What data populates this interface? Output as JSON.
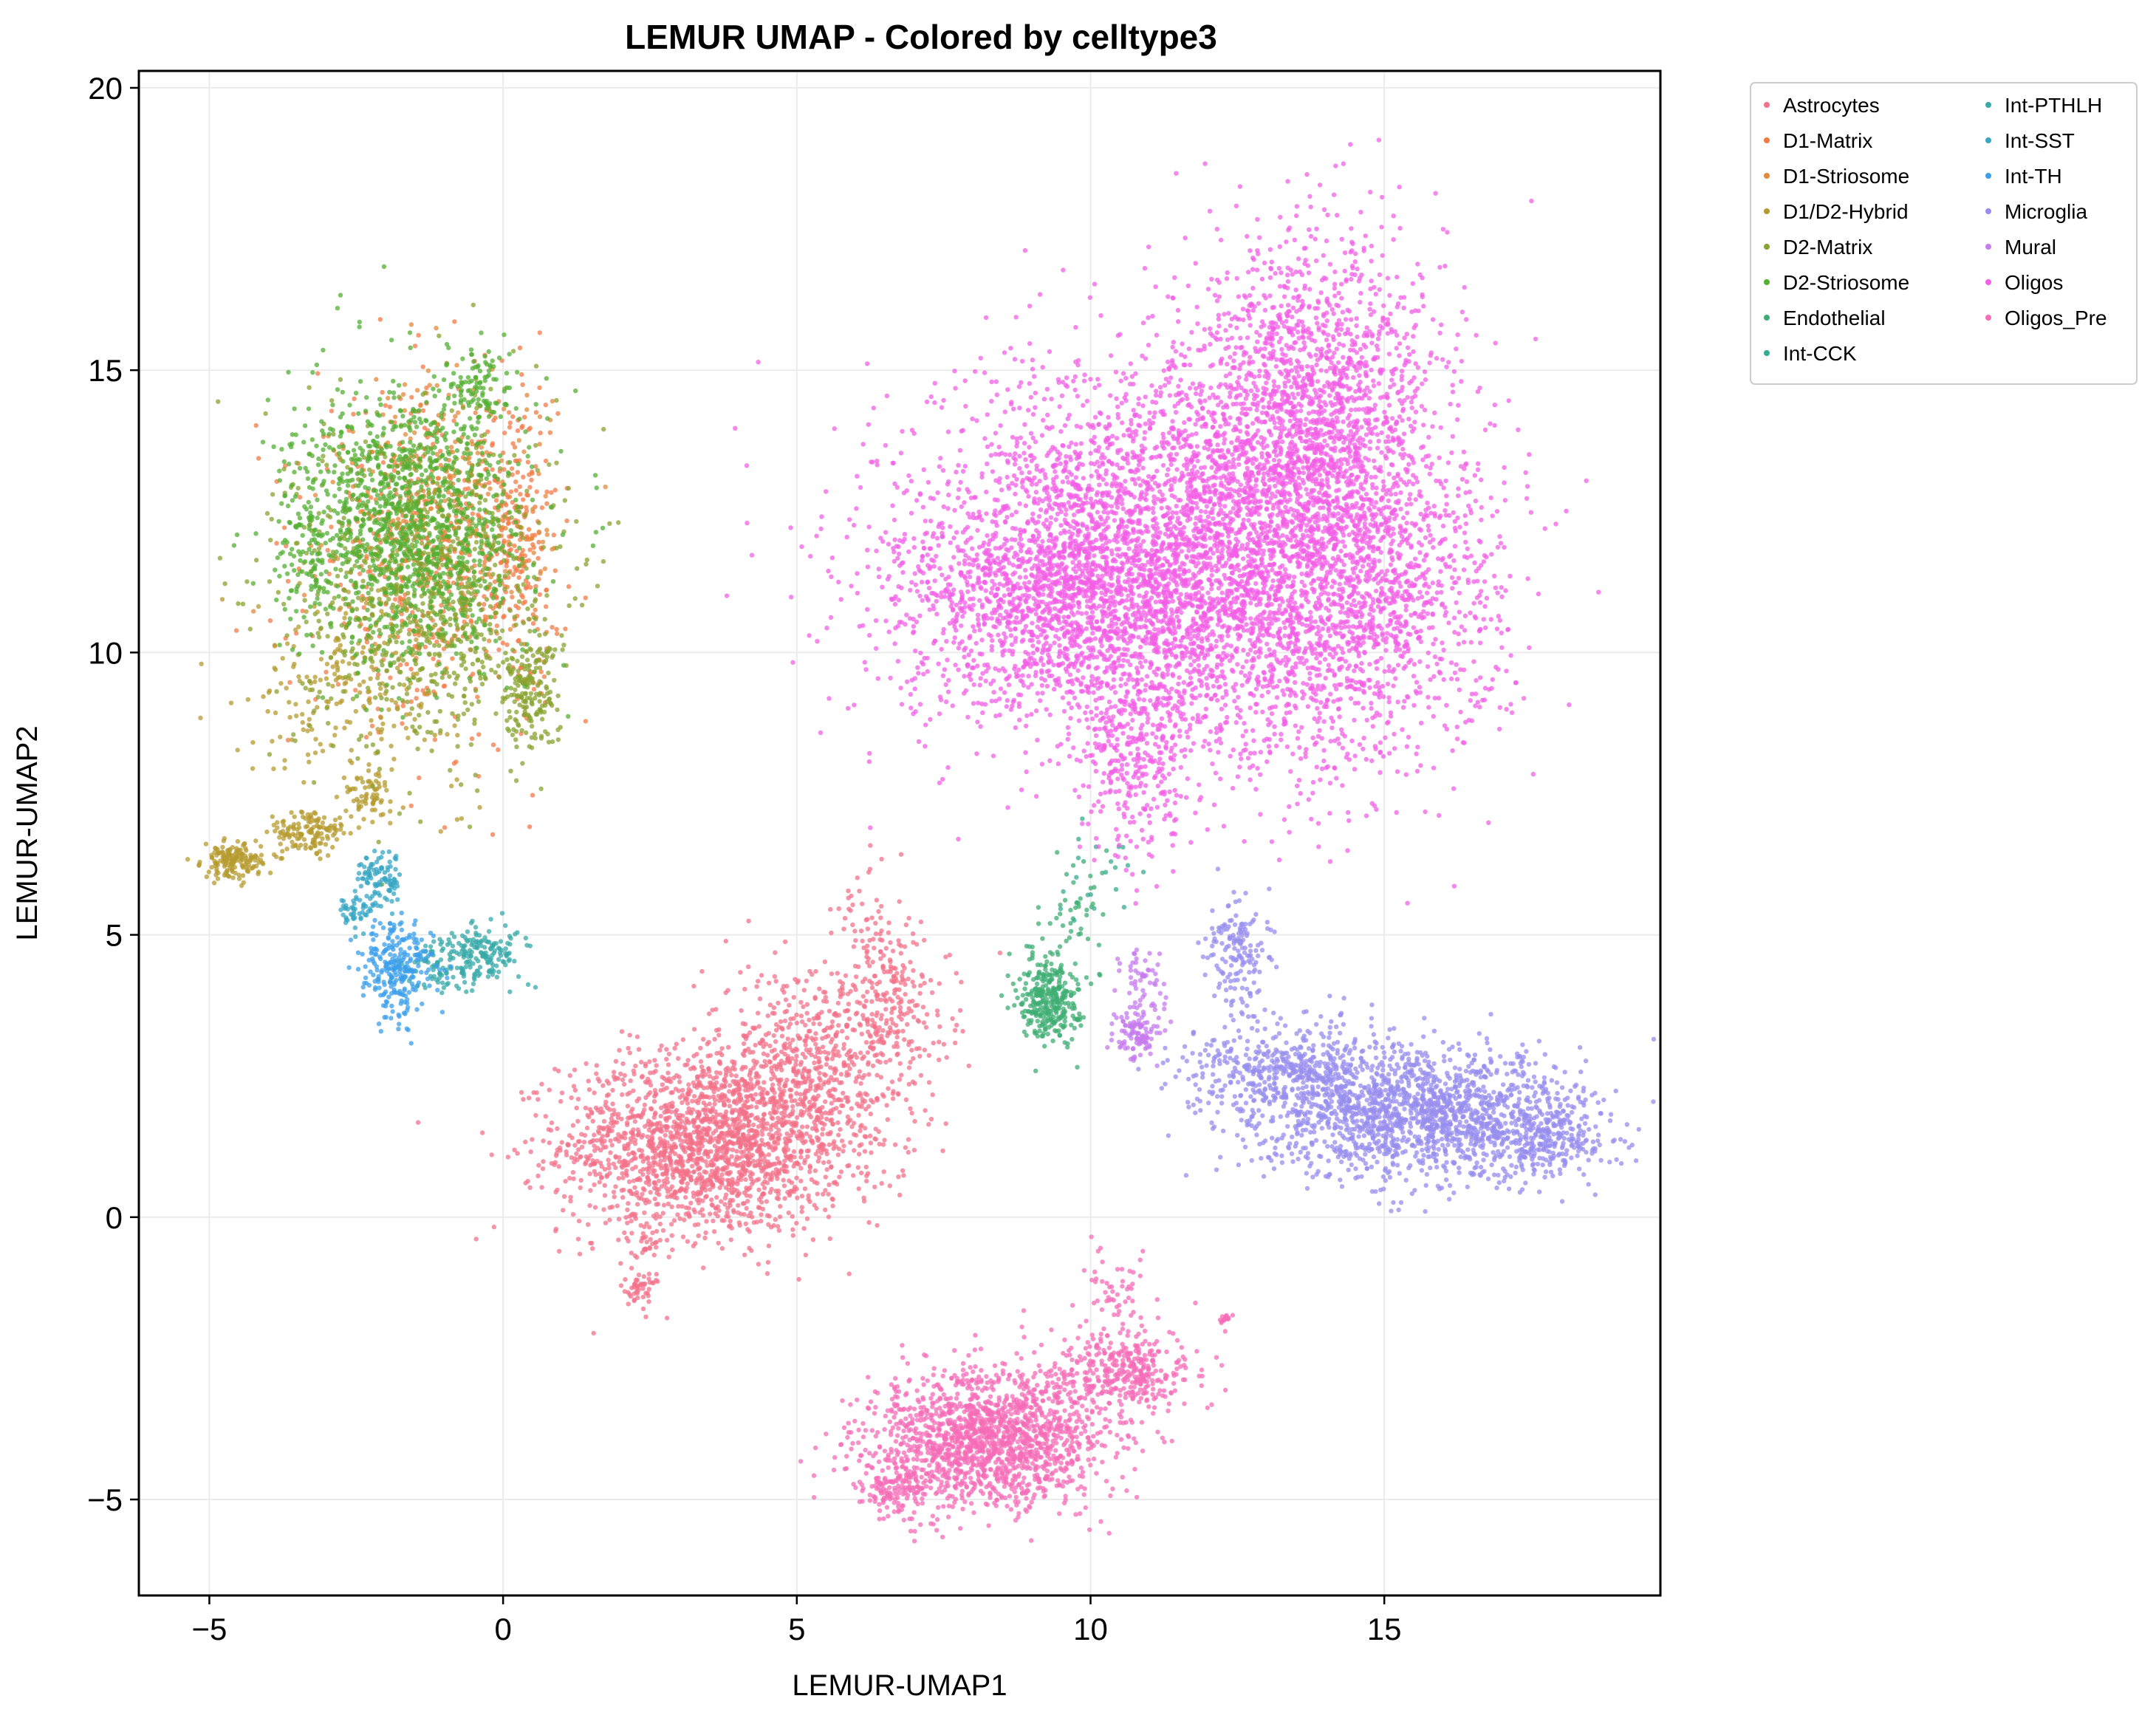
{
  "chart_data": {
    "type": "scatter",
    "title": "LEMUR UMAP - Colored by celltype3",
    "xlabel": "LEMUR-UMAP1",
    "ylabel": "LEMUR-UMAP2",
    "xlim": [
      -6.2,
      19.7
    ],
    "ylim": [
      -6.7,
      20.3
    ],
    "xticks": [
      -5,
      0,
      5,
      10,
      15
    ],
    "yticks": [
      -5,
      0,
      5,
      10,
      15,
      20
    ],
    "xtick_labels": [
      "−5",
      "0",
      "5",
      "10",
      "15"
    ],
    "ytick_labels": [
      "−5",
      "0",
      "5",
      "10",
      "15",
      "20"
    ],
    "grid": true,
    "legend_position": "outside-top-right",
    "legend_columns": 2,
    "series": [
      {
        "name": "Astrocytes",
        "color": "#f37189",
        "clusters": [
          {
            "cx": 3.4,
            "cy": 1.3,
            "sx": 1.2,
            "sy": 0.8,
            "n": 1800
          },
          {
            "cx": 5.2,
            "cy": 2.5,
            "sx": 0.9,
            "sy": 1.0,
            "n": 700
          },
          {
            "cx": 6.6,
            "cy": 3.8,
            "sx": 0.5,
            "sy": 0.7,
            "n": 220
          },
          {
            "cx": 6.2,
            "cy": 5.3,
            "sx": 0.3,
            "sy": 0.5,
            "n": 40
          },
          {
            "cx": 2.3,
            "cy": -1.3,
            "sx": 0.15,
            "sy": 0.15,
            "n": 40
          },
          {
            "cx": 2.4,
            "cy": -0.4,
            "sx": 0.2,
            "sy": 0.4,
            "n": 40
          }
        ]
      },
      {
        "name": "D1-Matrix",
        "color": "#f47a45",
        "clusters": [
          {
            "cx": -1.2,
            "cy": 11.7,
            "sx": 1.0,
            "sy": 1.4,
            "n": 550
          },
          {
            "cx": 0.3,
            "cy": 12.0,
            "sx": 0.3,
            "sy": 1.4,
            "n": 180
          }
        ]
      },
      {
        "name": "D1-Striosome",
        "color": "#e4893a",
        "clusters": [
          {
            "cx": -1.0,
            "cy": 12.5,
            "sx": 0.9,
            "sy": 1.2,
            "n": 300
          }
        ]
      },
      {
        "name": "D1/D2-Hybrid",
        "color": "#b59b2f",
        "clusters": [
          {
            "cx": -4.6,
            "cy": 6.3,
            "sx": 0.25,
            "sy": 0.15,
            "n": 160
          },
          {
            "cx": -3.3,
            "cy": 6.8,
            "sx": 0.35,
            "sy": 0.2,
            "n": 140
          },
          {
            "cx": -2.3,
            "cy": 7.5,
            "sx": 0.2,
            "sy": 0.2,
            "n": 60
          },
          {
            "cx": -2.5,
            "cy": 9.5,
            "sx": 0.9,
            "sy": 0.9,
            "n": 250
          }
        ]
      },
      {
        "name": "D2-Matrix",
        "color": "#88a32f",
        "clusters": [
          {
            "cx": -1.3,
            "cy": 11.2,
            "sx": 1.1,
            "sy": 1.5,
            "n": 900
          },
          {
            "cx": 0.4,
            "cy": 9.3,
            "sx": 0.25,
            "sy": 0.5,
            "n": 160
          }
        ]
      },
      {
        "name": "D2-Striosome",
        "color": "#53af31",
        "clusters": [
          {
            "cx": -1.6,
            "cy": 12.3,
            "sx": 1.0,
            "sy": 1.2,
            "n": 1200
          },
          {
            "cx": -0.5,
            "cy": 14.7,
            "sx": 0.3,
            "sy": 0.3,
            "n": 90
          },
          {
            "cx": -3.4,
            "cy": 11.8,
            "sx": 0.2,
            "sy": 0.8,
            "n": 70
          }
        ]
      },
      {
        "name": "Endothelial",
        "color": "#3fad73",
        "clusters": [
          {
            "cx": 9.3,
            "cy": 3.9,
            "sx": 0.25,
            "sy": 0.4,
            "n": 320
          },
          {
            "cx": 9.8,
            "cy": 5.4,
            "sx": 0.3,
            "sy": 0.5,
            "n": 40
          }
        ]
      },
      {
        "name": "Int-CCK",
        "color": "#35ab92",
        "clusters": [
          {
            "cx": 10.2,
            "cy": 6.3,
            "sx": 0.4,
            "sy": 0.5,
            "n": 20
          }
        ]
      },
      {
        "name": "Int-PTHLH",
        "color": "#37aaa8",
        "clusters": [
          {
            "cx": -0.3,
            "cy": 4.7,
            "sx": 0.35,
            "sy": 0.25,
            "n": 150
          },
          {
            "cx": -1.0,
            "cy": 4.4,
            "sx": 0.35,
            "sy": 0.25,
            "n": 80
          }
        ]
      },
      {
        "name": "Int-SST",
        "color": "#36a6c4",
        "clusters": [
          {
            "cx": -2.1,
            "cy": 6.0,
            "sx": 0.2,
            "sy": 0.25,
            "n": 100
          },
          {
            "cx": -2.5,
            "cy": 5.4,
            "sx": 0.15,
            "sy": 0.15,
            "n": 40
          }
        ]
      },
      {
        "name": "Int-TH",
        "color": "#3b9fea",
        "clusters": [
          {
            "cx": -1.8,
            "cy": 4.4,
            "sx": 0.3,
            "sy": 0.45,
            "n": 260
          }
        ]
      },
      {
        "name": "Microglia",
        "color": "#978dee",
        "clusters": [
          {
            "cx": 15.7,
            "cy": 1.8,
            "sx": 1.4,
            "sy": 0.55,
            "n": 1600
          },
          {
            "cx": 13.5,
            "cy": 2.6,
            "sx": 0.9,
            "sy": 0.45,
            "n": 500
          },
          {
            "cx": 12.5,
            "cy": 4.7,
            "sx": 0.25,
            "sy": 0.5,
            "n": 160
          },
          {
            "cx": 17.8,
            "cy": 1.3,
            "sx": 0.5,
            "sy": 0.3,
            "n": 200
          }
        ]
      },
      {
        "name": "Mural",
        "color": "#c67bee",
        "clusters": [
          {
            "cx": 10.8,
            "cy": 3.3,
            "sx": 0.2,
            "sy": 0.25,
            "n": 120
          },
          {
            "cx": 10.9,
            "cy": 4.3,
            "sx": 0.2,
            "sy": 0.25,
            "n": 40
          }
        ]
      },
      {
        "name": "Oligos",
        "color": "#f35fe6",
        "clusters": [
          {
            "cx": 11.6,
            "cy": 11.6,
            "sx": 2.1,
            "sy": 1.7,
            "n": 4000
          },
          {
            "cx": 13.8,
            "cy": 14.2,
            "sx": 1.1,
            "sy": 1.6,
            "n": 1800
          },
          {
            "cx": 9.2,
            "cy": 11.0,
            "sx": 1.4,
            "sy": 1.1,
            "n": 1200
          },
          {
            "cx": 10.8,
            "cy": 8.0,
            "sx": 0.45,
            "sy": 0.9,
            "n": 280
          },
          {
            "cx": 14.5,
            "cy": 10.5,
            "sx": 1.2,
            "sy": 1.4,
            "n": 900
          }
        ]
      },
      {
        "name": "Oligos_Pre",
        "color": "#f66cb7",
        "clusters": [
          {
            "cx": 8.3,
            "cy": -3.9,
            "sx": 1.0,
            "sy": 0.6,
            "n": 1600
          },
          {
            "cx": 10.6,
            "cy": -2.7,
            "sx": 0.6,
            "sy": 0.35,
            "n": 350
          },
          {
            "cx": 6.7,
            "cy": -4.8,
            "sx": 0.35,
            "sy": 0.3,
            "n": 150
          },
          {
            "cx": 10.5,
            "cy": -1.3,
            "sx": 0.3,
            "sy": 0.4,
            "n": 50
          },
          {
            "cx": 12.3,
            "cy": -1.8,
            "sx": 0.1,
            "sy": 0.05,
            "n": 15
          }
        ]
      }
    ]
  }
}
